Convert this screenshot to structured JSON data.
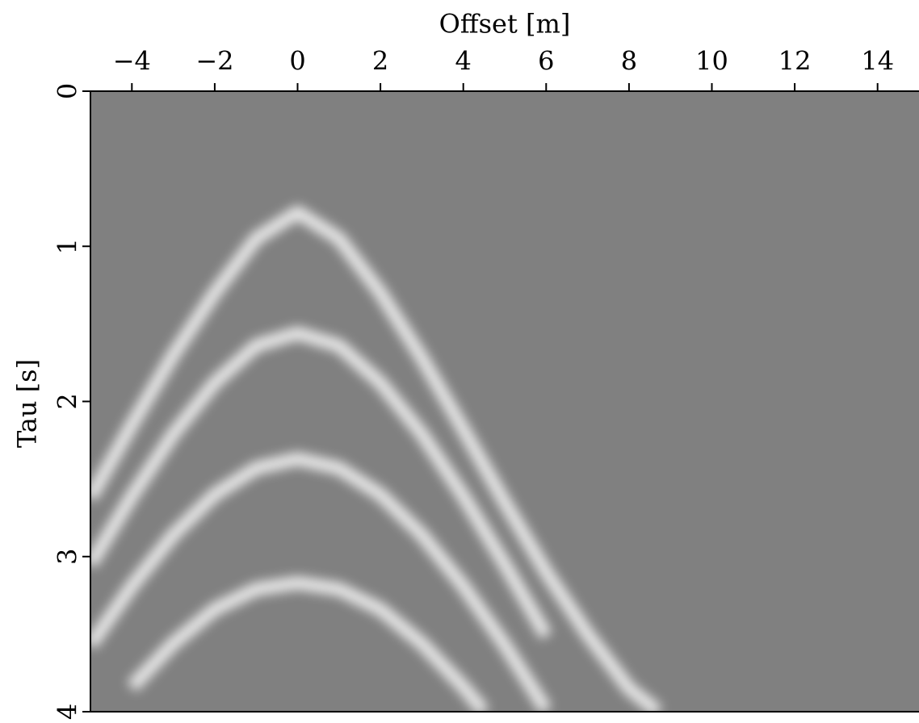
{
  "chart_data": {
    "type": "image",
    "title": "Offset [m]",
    "ylabel": "Tau [s]",
    "xlim": [
      -5,
      15
    ],
    "ylim": [
      4,
      0
    ],
    "xticks": [
      {
        "value": -4,
        "label": "−4"
      },
      {
        "value": -2,
        "label": "−2"
      },
      0,
      2,
      4,
      6,
      8,
      10,
      12,
      14
    ],
    "yticks": [
      0,
      1,
      2,
      3,
      4
    ],
    "xaxis_position": "top",
    "background": "#808080",
    "color": "#ffffff",
    "series": [
      {
        "x": [
          -5,
          -4,
          -3,
          -2,
          -1,
          0,
          1,
          2,
          3,
          4,
          5,
          6,
          7,
          8,
          8.7
        ],
        "values": [
          2.62,
          2.15,
          1.7,
          1.3,
          0.95,
          0.78,
          0.95,
          1.3,
          1.72,
          2.18,
          2.65,
          3.1,
          3.5,
          3.85,
          4.0
        ]
      },
      {
        "x": [
          -5,
          -4,
          -3,
          -2,
          -1,
          0,
          1,
          2,
          3,
          4,
          5,
          6
        ],
        "values": [
          3.05,
          2.61,
          2.21,
          1.88,
          1.64,
          1.56,
          1.64,
          1.88,
          2.21,
          2.61,
          3.05,
          3.51
        ]
      },
      {
        "x": [
          -5,
          -4,
          -3,
          -2,
          -1,
          0,
          1,
          2,
          3,
          4,
          5,
          6
        ],
        "values": [
          3.57,
          3.19,
          2.86,
          2.6,
          2.43,
          2.37,
          2.43,
          2.6,
          2.86,
          3.19,
          3.57,
          3.99
        ]
      },
      {
        "x": [
          -4,
          -3,
          -2,
          -1,
          0,
          1,
          2,
          3,
          4,
          4.5
        ],
        "values": [
          3.84,
          3.56,
          3.34,
          3.21,
          3.17,
          3.21,
          3.34,
          3.56,
          3.84,
          4.0
        ]
      }
    ]
  }
}
